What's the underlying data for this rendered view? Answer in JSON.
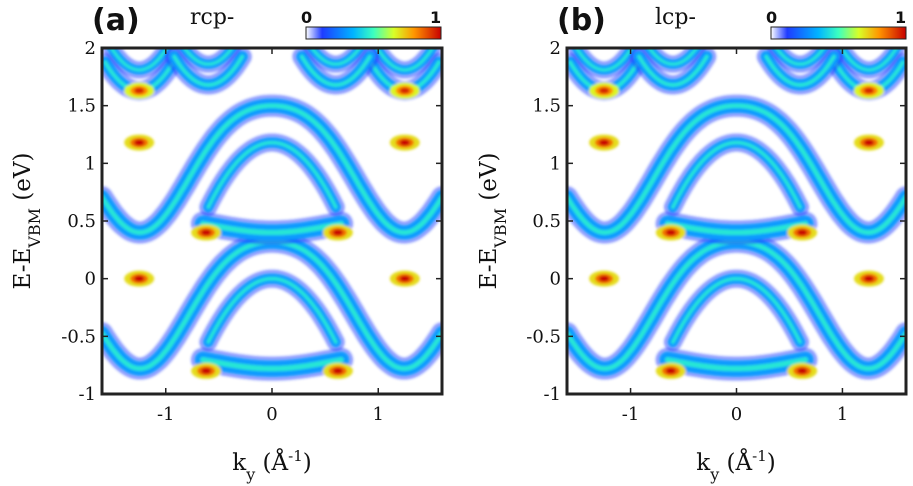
{
  "chart_data": [
    {
      "type": "heatmap",
      "panel": "(a)",
      "title": "rcp-",
      "xlabel": "k_y (Å^-1)",
      "ylabel": "E-E_VBM (eV)",
      "xlim": [
        -1.6,
        1.6
      ],
      "ylim": [
        -1,
        2
      ],
      "xticks": [
        -1,
        0,
        1
      ],
      "xtick_labels": [
        "-1",
        "0",
        "1"
      ],
      "yticks": [
        -1,
        -0.5,
        0,
        0.5,
        1,
        1.5,
        2
      ],
      "ytick_labels": [
        "-1",
        "-0.5",
        "0",
        "0.5",
        "1",
        "1.5",
        "2"
      ],
      "colorbar": {
        "range": [
          0,
          1
        ],
        "tick_labels": [
          "0",
          "1"
        ],
        "colormap": "jet"
      },
      "bands": [
        {
          "name": "",
          "kind": "cosine",
          "center": -0.15,
          "amp": 0.55,
          "k": 3.1,
          "dip": 0.08,
          "intensity": 0.75
        },
        {
          "name": "",
          "kind": "arch",
          "base": -0.55,
          "peak": 0.0,
          "half_width": 0.6,
          "intensity": 0.5
        },
        {
          "name": "",
          "kind": "flat",
          "base": -0.72,
          "amp": 0.1,
          "half_width": 0.55,
          "intensity": 0.6
        },
        {
          "name": "",
          "kind": "cosine",
          "center": 1.03,
          "amp": 0.55,
          "k": 3.1,
          "dip": 0.08,
          "intensity": 0.75
        },
        {
          "name": "",
          "kind": "arch",
          "base": 0.62,
          "peak": 1.18,
          "half_width": 0.6,
          "intensity": 0.5
        },
        {
          "name": "",
          "kind": "flat",
          "base": 0.46,
          "amp": 0.1,
          "half_width": 0.55,
          "intensity": 0.6
        }
      ],
      "upper_bands": {
        "minima_x": [
          -1.25,
          1.25,
          -0.6,
          0.6
        ],
        "minima_e": [
          1.63,
          1.63,
          1.68,
          1.68
        ]
      },
      "hotspots": [
        {
          "x": -1.25,
          "y": 0.0,
          "value": 1.0
        },
        {
          "x": 1.25,
          "y": 0.0,
          "value": 1.0
        },
        {
          "x": -0.62,
          "y": -0.8,
          "value": 1.0
        },
        {
          "x": 0.62,
          "y": -0.8,
          "value": 1.0
        },
        {
          "x": -1.25,
          "y": 1.18,
          "value": 1.0
        },
        {
          "x": 1.25,
          "y": 1.18,
          "value": 1.0
        },
        {
          "x": -0.62,
          "y": 0.4,
          "value": 1.0
        },
        {
          "x": 0.62,
          "y": 0.4,
          "value": 1.0
        },
        {
          "x": -1.25,
          "y": 1.63,
          "value": 0.95
        },
        {
          "x": 1.25,
          "y": 1.63,
          "value": 0.95
        }
      ]
    },
    {
      "type": "heatmap",
      "panel": "(b)",
      "title": "lcp-",
      "xlabel": "k_y (Å^-1)",
      "ylabel": "E-E_VBM (eV)",
      "xlim": [
        -1.6,
        1.6
      ],
      "ylim": [
        -1,
        2
      ],
      "xticks": [
        -1,
        0,
        1
      ],
      "xtick_labels": [
        "-1",
        "0",
        "1"
      ],
      "yticks": [
        -1,
        -0.5,
        0,
        0.5,
        1,
        1.5,
        2
      ],
      "ytick_labels": [
        "-1",
        "-0.5",
        "0",
        "0.5",
        "1",
        "1.5",
        "2"
      ],
      "colorbar": {
        "range": [
          0,
          1
        ],
        "tick_labels": [
          "0",
          "1"
        ],
        "colormap": "jet"
      },
      "bands": [
        {
          "name": "",
          "kind": "cosine",
          "center": -0.15,
          "amp": 0.55,
          "k": 3.1,
          "dip": 0.08,
          "intensity": 0.75
        },
        {
          "name": "",
          "kind": "arch",
          "base": -0.55,
          "peak": 0.0,
          "half_width": 0.6,
          "intensity": 0.5
        },
        {
          "name": "",
          "kind": "flat",
          "base": -0.72,
          "amp": 0.1,
          "half_width": 0.55,
          "intensity": 0.6
        },
        {
          "name": "",
          "kind": "cosine",
          "center": 1.03,
          "amp": 0.55,
          "k": 3.1,
          "dip": 0.08,
          "intensity": 0.75
        },
        {
          "name": "",
          "kind": "arch",
          "base": 0.62,
          "peak": 1.18,
          "half_width": 0.6,
          "intensity": 0.5
        },
        {
          "name": "",
          "kind": "flat",
          "base": 0.46,
          "amp": 0.1,
          "half_width": 0.55,
          "intensity": 0.6
        }
      ],
      "upper_bands": {
        "minima_x": [
          -1.25,
          1.25,
          -0.6,
          0.6
        ],
        "minima_e": [
          1.63,
          1.63,
          1.68,
          1.68
        ]
      },
      "hotspots": [
        {
          "x": -1.25,
          "y": 0.0,
          "value": 1.0
        },
        {
          "x": 1.25,
          "y": 0.0,
          "value": 1.0
        },
        {
          "x": -0.62,
          "y": -0.8,
          "value": 1.0
        },
        {
          "x": 0.62,
          "y": -0.8,
          "value": 1.0
        },
        {
          "x": -1.25,
          "y": 1.18,
          "value": 1.0
        },
        {
          "x": 1.25,
          "y": 1.18,
          "value": 1.0
        },
        {
          "x": -0.62,
          "y": 0.4,
          "value": 1.0
        },
        {
          "x": 0.62,
          "y": 0.4,
          "value": 1.0
        },
        {
          "x": -1.25,
          "y": 1.63,
          "value": 0.95
        },
        {
          "x": 1.25,
          "y": 1.63,
          "value": 0.95
        }
      ]
    }
  ]
}
